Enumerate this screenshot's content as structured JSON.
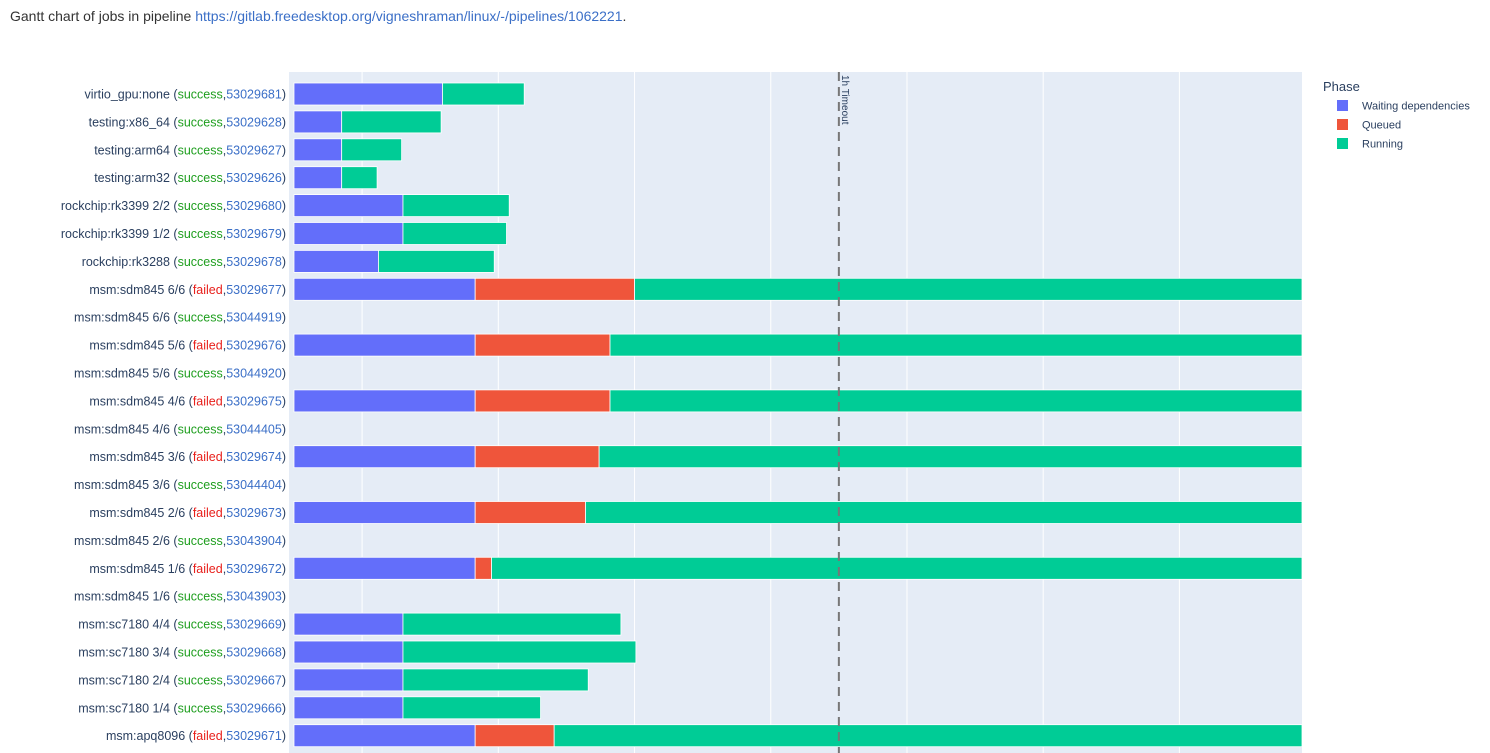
{
  "header": {
    "prefix": "Gantt chart of jobs in pipeline ",
    "link": "https://gitlab.freedesktop.org/vigneshraman/linux/-/pipelines/1062221",
    "suffix": "."
  },
  "chart_data": {
    "type": "bar",
    "orientation": "horizontal-stacked",
    "x_max_visible": 74,
    "grid": true,
    "legend_position": "top-right",
    "legend_title": "Phase",
    "phases": [
      {
        "name": "Waiting dependencies",
        "color": "#636efa"
      },
      {
        "name": "Queued",
        "color": "#ef553b"
      },
      {
        "name": "Running",
        "color": "#00cc96"
      }
    ],
    "timeout": {
      "x": 40,
      "label": "1h Timeout"
    },
    "status_colors": {
      "success": "#1e9e1e",
      "failed": "#e8201c",
      "id": "#3b6fc7",
      "text": "#2a3f5f"
    },
    "jobs": [
      {
        "name": "virtio_gpu:none",
        "status": "success",
        "id": "53029681",
        "wait": 10.9,
        "queued": 0,
        "run": 6.0
      },
      {
        "name": "testing:x86_64",
        "status": "success",
        "id": "53029628",
        "wait": 3.5,
        "queued": 0,
        "run": 7.3
      },
      {
        "name": "testing:arm64",
        "status": "success",
        "id": "53029627",
        "wait": 3.5,
        "queued": 0,
        "run": 4.4
      },
      {
        "name": "testing:arm32",
        "status": "success",
        "id": "53029626",
        "wait": 3.5,
        "queued": 0,
        "run": 2.6
      },
      {
        "name": "rockchip:rk3399 2/2",
        "status": "success",
        "id": "53029680",
        "wait": 8.0,
        "queued": 0,
        "run": 7.8
      },
      {
        "name": "rockchip:rk3399 1/2",
        "status": "success",
        "id": "53029679",
        "wait": 8.0,
        "queued": 0,
        "run": 7.6
      },
      {
        "name": "rockchip:rk3288",
        "status": "success",
        "id": "53029678",
        "wait": 6.2,
        "queued": 0,
        "run": 8.5
      },
      {
        "name": "msm:sdm845 6/6",
        "status": "failed",
        "id": "53029677",
        "wait": 13.3,
        "queued": 11.7,
        "run": 49.0
      },
      {
        "name": "msm:sdm845 6/6",
        "status": "success",
        "id": "53044919",
        "wait": 0,
        "queued": 0,
        "run": 0
      },
      {
        "name": "msm:sdm845 5/6",
        "status": "failed",
        "id": "53029676",
        "wait": 13.3,
        "queued": 9.9,
        "run": 50.8
      },
      {
        "name": "msm:sdm845 5/6",
        "status": "success",
        "id": "53044920",
        "wait": 0,
        "queued": 0,
        "run": 0
      },
      {
        "name": "msm:sdm845 4/6",
        "status": "failed",
        "id": "53029675",
        "wait": 13.3,
        "queued": 9.9,
        "run": 50.8
      },
      {
        "name": "msm:sdm845 4/6",
        "status": "success",
        "id": "53044405",
        "wait": 0,
        "queued": 0,
        "run": 0
      },
      {
        "name": "msm:sdm845 3/6",
        "status": "failed",
        "id": "53029674",
        "wait": 13.3,
        "queued": 9.1,
        "run": 51.6
      },
      {
        "name": "msm:sdm845 3/6",
        "status": "success",
        "id": "53044404",
        "wait": 0,
        "queued": 0,
        "run": 0
      },
      {
        "name": "msm:sdm845 2/6",
        "status": "failed",
        "id": "53029673",
        "wait": 13.3,
        "queued": 8.1,
        "run": 52.6
      },
      {
        "name": "msm:sdm845 2/6",
        "status": "success",
        "id": "53043904",
        "wait": 0,
        "queued": 0,
        "run": 0
      },
      {
        "name": "msm:sdm845 1/6",
        "status": "failed",
        "id": "53029672",
        "wait": 13.3,
        "queued": 1.2,
        "run": 59.5
      },
      {
        "name": "msm:sdm845 1/6",
        "status": "success",
        "id": "53043903",
        "wait": 0,
        "queued": 0,
        "run": 0
      },
      {
        "name": "msm:sc7180 4/4",
        "status": "success",
        "id": "53029669",
        "wait": 8.0,
        "queued": 0,
        "run": 16.0
      },
      {
        "name": "msm:sc7180 3/4",
        "status": "success",
        "id": "53029668",
        "wait": 8.0,
        "queued": 0,
        "run": 17.1
      },
      {
        "name": "msm:sc7180 2/4",
        "status": "success",
        "id": "53029667",
        "wait": 8.0,
        "queued": 0,
        "run": 13.6
      },
      {
        "name": "msm:sc7180 1/4",
        "status": "success",
        "id": "53029666",
        "wait": 8.0,
        "queued": 0,
        "run": 10.1
      },
      {
        "name": "msm:apq8096",
        "status": "failed",
        "id": "53029671",
        "wait": 13.3,
        "queued": 5.8,
        "run": 54.9
      }
    ]
  }
}
